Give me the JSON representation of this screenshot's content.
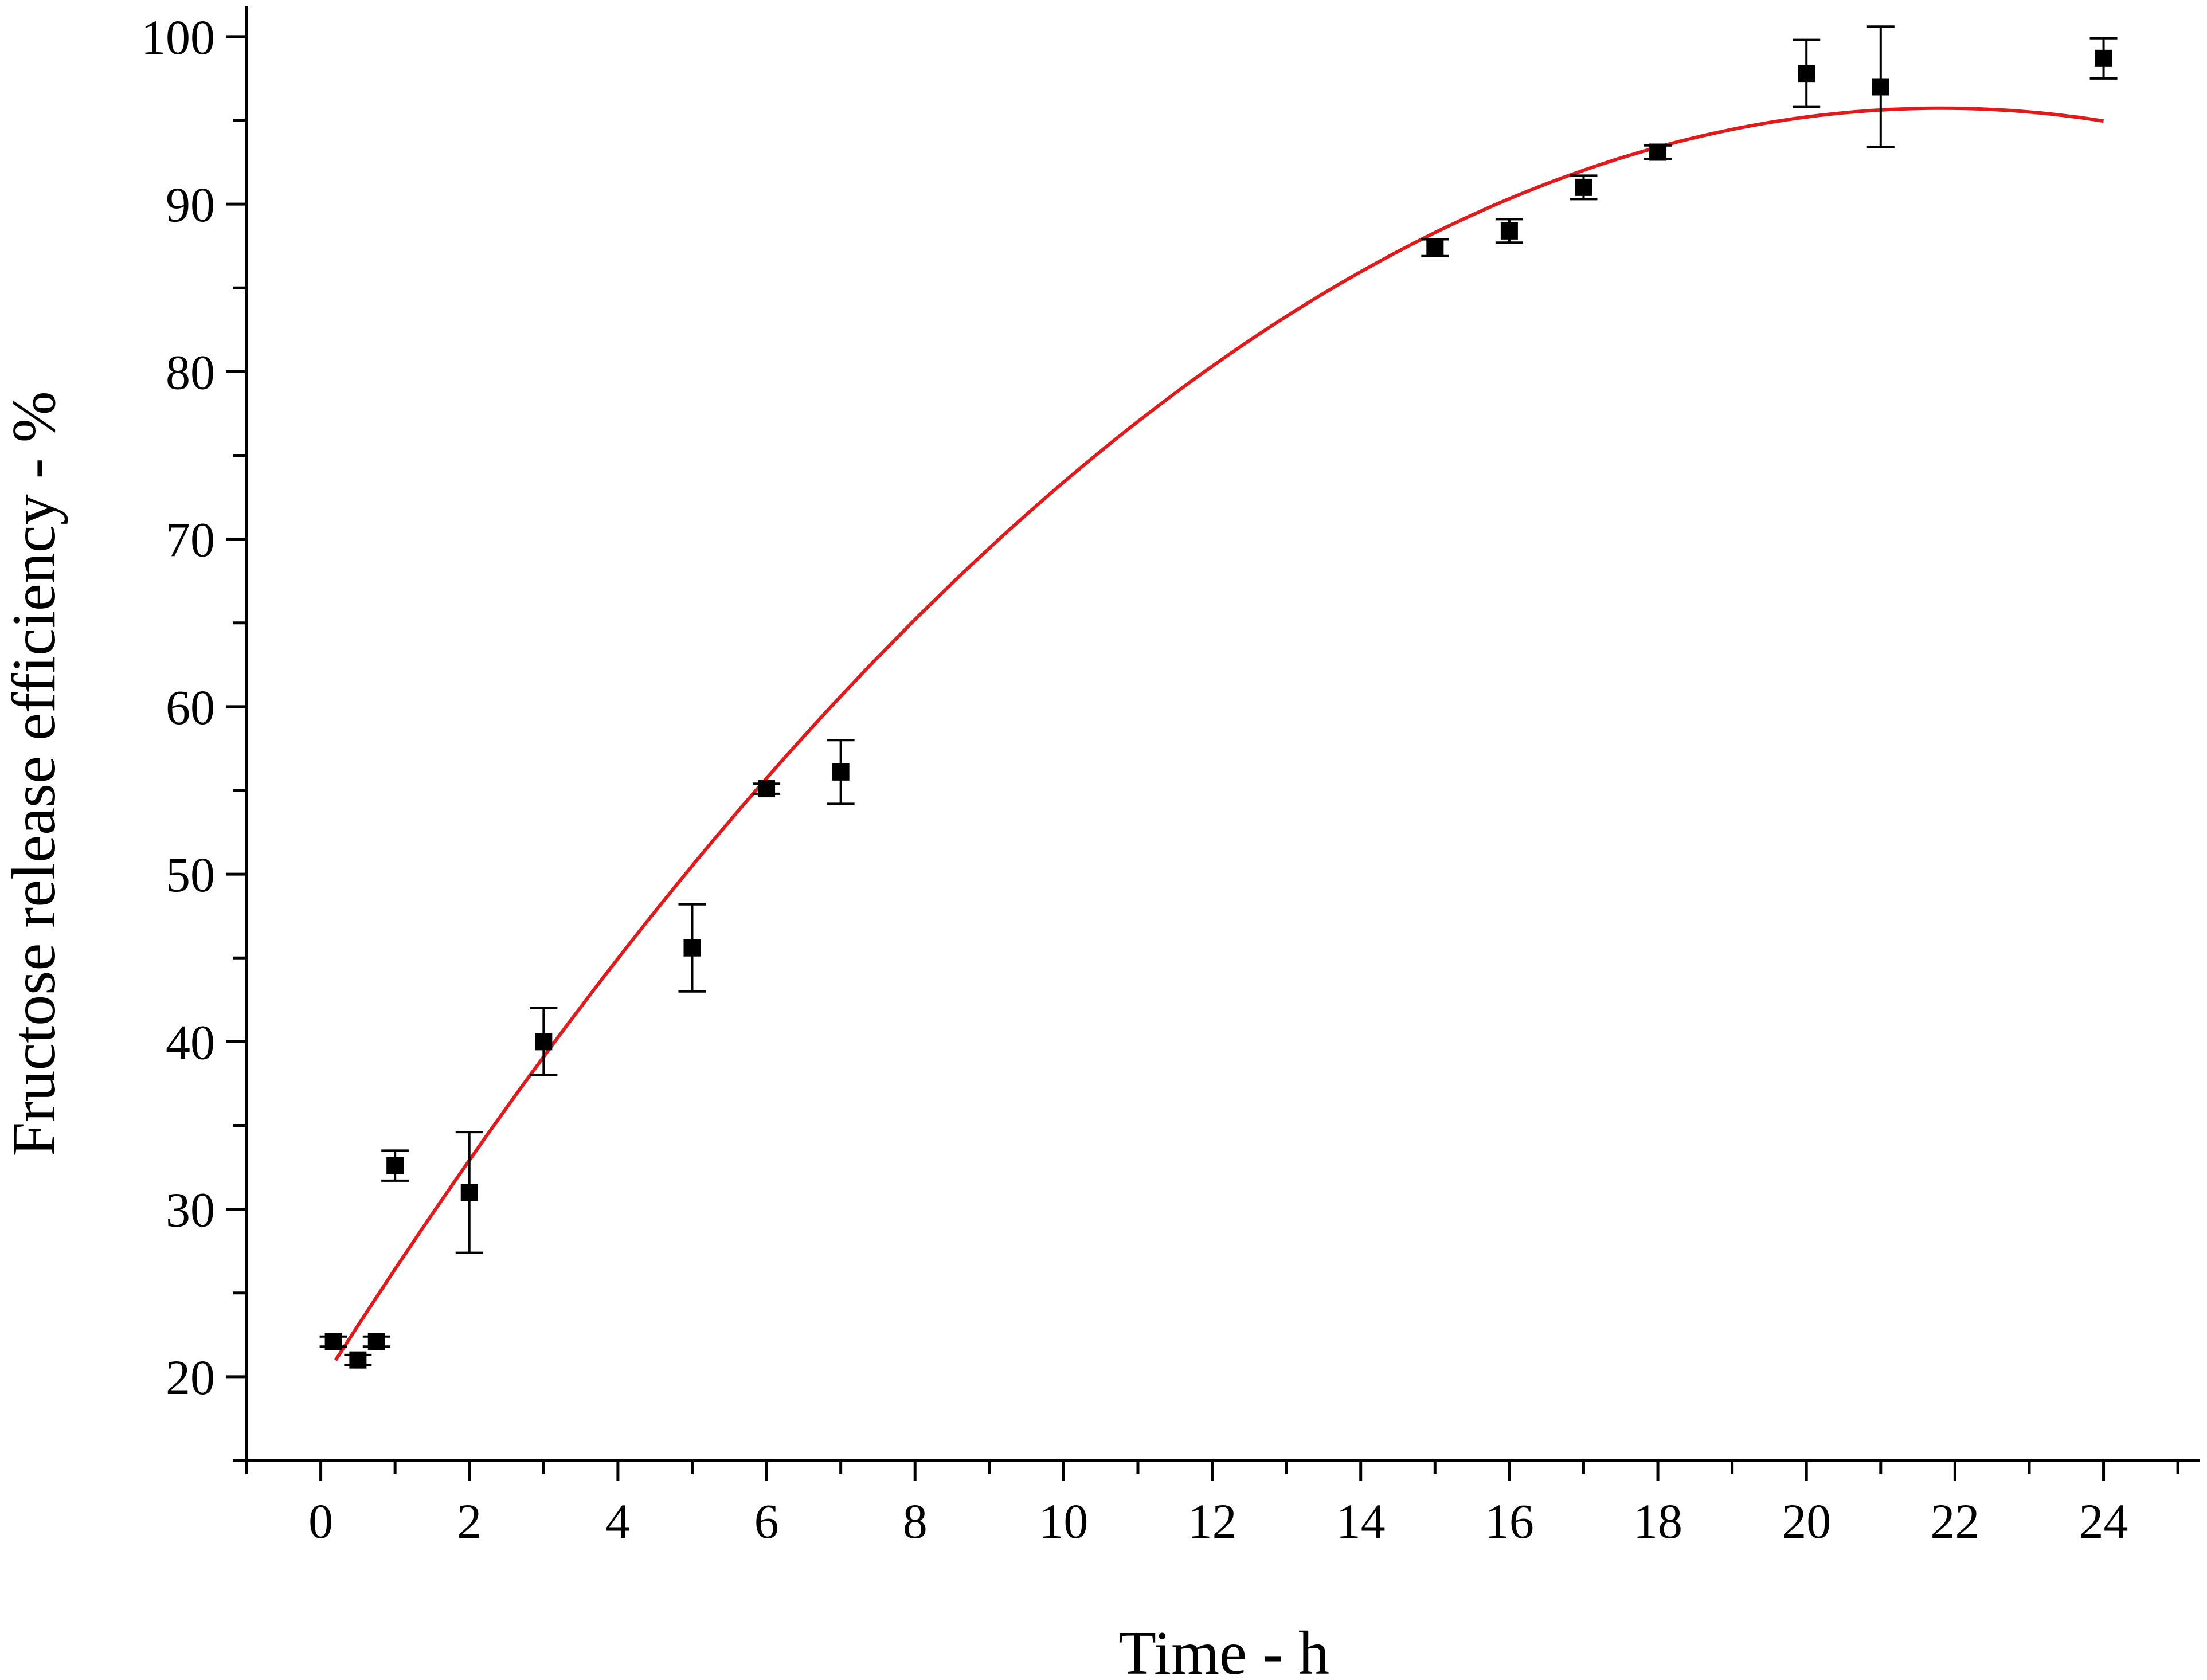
{
  "chart_data": {
    "type": "scatter",
    "xlabel": "Time - h",
    "ylabel": "Fructose release efficiency - %",
    "xlim": [
      -1,
      25.3
    ],
    "ylim": [
      15,
      101.5
    ],
    "xticks": [
      0,
      2,
      4,
      6,
      8,
      10,
      12,
      14,
      16,
      18,
      20,
      22,
      24
    ],
    "yticks": [
      20,
      30,
      40,
      50,
      60,
      70,
      80,
      90,
      100
    ],
    "xtick_labels": [
      "0",
      "2",
      "4",
      "6",
      "8",
      "10",
      "12",
      "14",
      "16",
      "18",
      "20",
      "22",
      "24"
    ],
    "ytick_labels": [
      "20",
      "30",
      "40",
      "50",
      "60",
      "70",
      "80",
      "90",
      "100"
    ],
    "grid": false,
    "points": {
      "x": [
        0.17,
        0.5,
        0.75,
        1,
        2,
        3,
        5,
        6,
        7,
        15,
        16,
        17,
        18,
        20,
        21,
        24
      ],
      "y": [
        22.1,
        21.0,
        22.1,
        32.6,
        31.0,
        40.0,
        45.6,
        55.1,
        56.1,
        87.4,
        88.4,
        91.0,
        93.1,
        97.8,
        97.0,
        98.7
      ],
      "err": [
        0.3,
        0.3,
        0.3,
        0.9,
        3.6,
        2.0,
        2.6,
        0.3,
        1.9,
        0.5,
        0.7,
        0.7,
        0.4,
        2.0,
        3.6,
        1.2
      ]
    },
    "fit_curve": {
      "type": "quadratic",
      "x_range": [
        0.2,
        24
      ],
      "coefficients": [
        19.6,
        6.98,
        -0.16
      ],
      "color": "#e31a1c"
    },
    "marker_color": "#000000"
  }
}
